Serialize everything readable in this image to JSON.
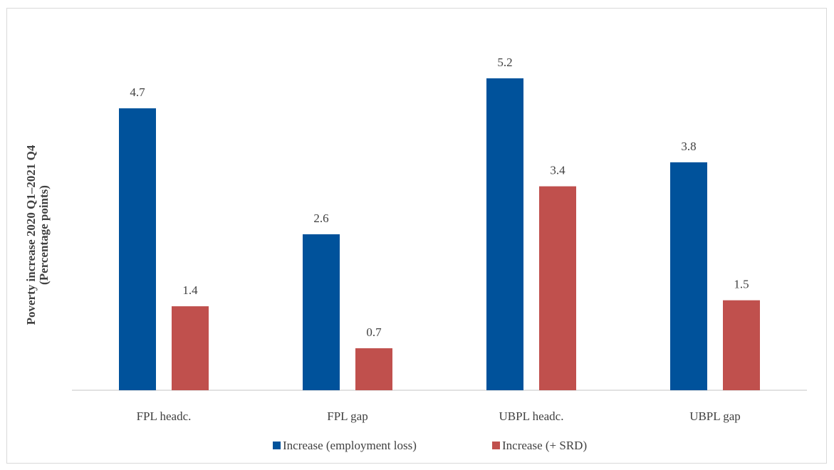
{
  "chart_data": {
    "type": "bar",
    "title": "",
    "xlabel": "",
    "ylabel": [
      "Poverty increase 2020 Q1–2021 Q4",
      "(Percentage points)"
    ],
    "categories": [
      "FPL headc.",
      "FPL gap",
      "UBPL headc.",
      "UBPL gap"
    ],
    "series": [
      {
        "name": "Increase (employment loss)",
        "color": "#00529b",
        "values": [
          4.7,
          2.6,
          5.2,
          3.8
        ]
      },
      {
        "name": "Increase (+ SRD)",
        "color": "#c0504d",
        "values": [
          1.4,
          0.7,
          3.4,
          1.5
        ]
      }
    ],
    "ylim": [
      0,
      5.2
    ],
    "grid": false,
    "legend": "bottom-center",
    "axis_color": "#d9d9d9",
    "text_color": "#404040"
  }
}
